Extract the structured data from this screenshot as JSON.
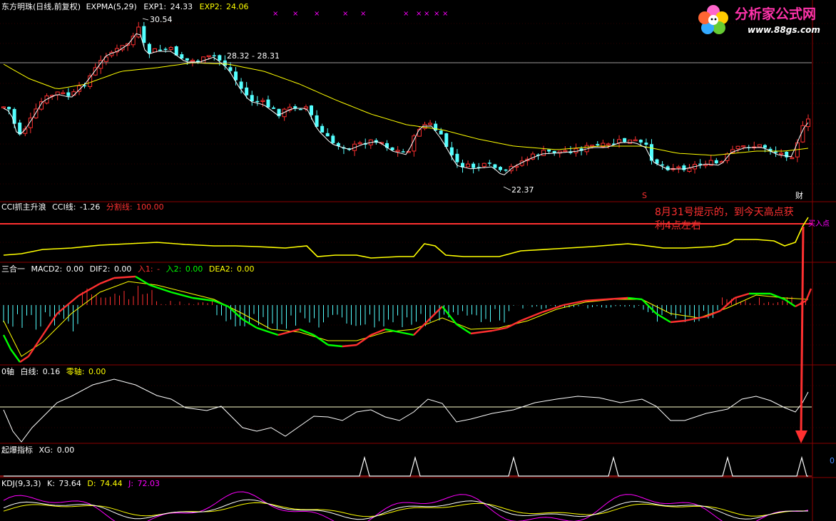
{
  "chart_data": [
    {
      "type": "candlestick",
      "panel": "main",
      "title": "东方明珠(日线,前复权)",
      "indicator": "EXPMA(5,29)",
      "legend": [
        {
          "name": "EXP1:",
          "value": "24.33",
          "color": "#ffffff"
        },
        {
          "name": "EXP2:",
          "value": "24.06",
          "color": "#ffff00"
        }
      ],
      "annotations": {
        "high": "30.54",
        "low": "22.37",
        "range": "28.32 - 28.31",
        "marker_s": "S",
        "marker_cai": "财"
      },
      "ylim": [
        21.5,
        31.5
      ]
    },
    {
      "type": "line",
      "panel": "cci",
      "title": "CCI抓主升浪",
      "legend": [
        {
          "name": "CCI线:",
          "value": "-1.26",
          "color": "#ffffff"
        },
        {
          "name": "分割线:",
          "value": "100.00",
          "color": "#ff3030"
        }
      ],
      "callout": "8月31号提示的，到今天高点获利4点左右",
      "buy_label": "买入点"
    },
    {
      "type": "line",
      "panel": "macd",
      "title": "三合一",
      "legend": [
        {
          "name": "MACD2:",
          "value": "0.00",
          "color": "#ffffff"
        },
        {
          "name": "DIF2:",
          "value": "0.00",
          "color": "#ffffff"
        },
        {
          "name": "入1:",
          "value": "-",
          "color": "#ff3030"
        },
        {
          "name": "入2:",
          "value": "0.00",
          "color": "#00ff00"
        },
        {
          "name": "DEA2:",
          "value": "0.00",
          "color": "#ffff00"
        }
      ]
    },
    {
      "type": "line",
      "panel": "zero",
      "title": "0轴",
      "legend": [
        {
          "name": "白线:",
          "value": "0.16",
          "color": "#ffffff"
        },
        {
          "name": "零轴:",
          "value": "0.00",
          "color": "#ffff00"
        }
      ]
    },
    {
      "type": "line",
      "panel": "xg",
      "title": "起爆指标",
      "legend": [
        {
          "name": "XG:",
          "value": "0.00",
          "color": "#ffffff"
        }
      ],
      "right_value": "0"
    },
    {
      "type": "line",
      "panel": "kdj",
      "title": "KDJ(9,3,3)",
      "legend": [
        {
          "name": "K:",
          "value": "73.64",
          "color": "#ffffff"
        },
        {
          "name": "D:",
          "value": "74.44",
          "color": "#ffff00"
        },
        {
          "name": "J:",
          "value": "72.03",
          "color": "#ff00ff"
        }
      ]
    }
  ],
  "logo": {
    "name": "分析家公式网",
    "url": "www.88gs.com"
  },
  "colors": {
    "up": "#ff3030",
    "down": "#54ffff",
    "exp1": "#ffffff",
    "exp2": "#ffff00",
    "grid": "#8b0000",
    "cci": "#ffff00",
    "signal": "#ff00ff",
    "arrow": "#ff3030"
  }
}
